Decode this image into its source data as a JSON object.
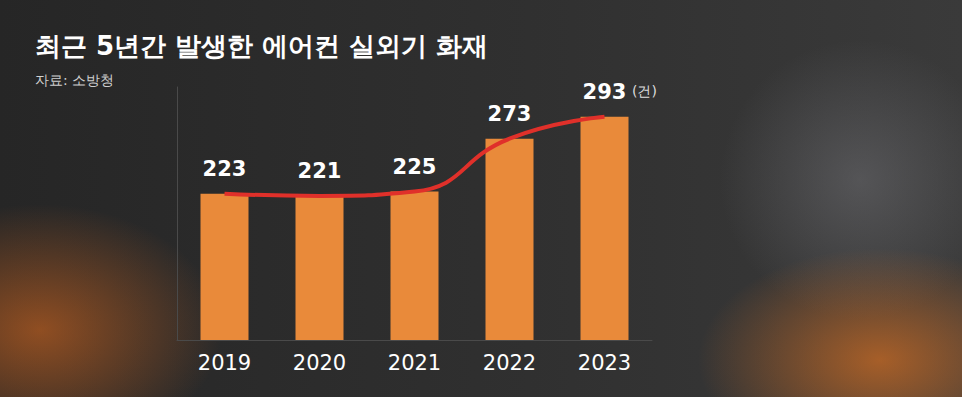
{
  "chart_data": {
    "type": "bar_line",
    "title": "최근 5년간 발생한 에어컨 실외기 화재",
    "subtitle": "자료: 소방청",
    "annotations": [
      "(건)"
    ],
    "categories": [
      "2019",
      "2020",
      "2021",
      "2022",
      "2023"
    ],
    "series": [
      {
        "type": "bar",
        "color": "#e98a3a",
        "values": [
          223,
          221,
          225,
          273,
          293
        ]
      },
      {
        "type": "line",
        "color": "#e0302a",
        "line_style": "smooth",
        "values": [
          223,
          221,
          225,
          273,
          293
        ]
      }
    ],
    "ylim": [
      90,
      320
    ],
    "data_labels": true,
    "tick_labels": "x",
    "grid": false
  }
}
